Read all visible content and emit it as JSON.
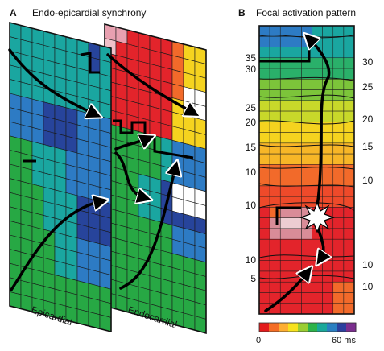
{
  "panel_a": {
    "letter": "A",
    "title": "Endo-epicardial synchrony",
    "epicardial_label": "Epicardial",
    "endocardial_label": "Endocardial"
  },
  "panel_b": {
    "letter": "B",
    "title": "Focal activation pattern",
    "left_labels": [
      "35",
      "30",
      "25",
      "20",
      "15",
      "10",
      "10",
      "10",
      "5"
    ],
    "right_labels": [
      "30",
      "25",
      "20",
      "15",
      "10",
      "10",
      "10"
    ]
  },
  "colorbar": {
    "min_label": "0",
    "max_label": "60 ms",
    "stops": [
      "#e31a1c",
      "#f46d25",
      "#fdae32",
      "#f7e21e",
      "#9acd32",
      "#2db34a",
      "#1aa89a",
      "#2a7fc1",
      "#2b3f9e",
      "#7b2d8e"
    ]
  },
  "colors": {
    "red": "#e3242b",
    "orange": "#f26a2a",
    "yellow": "#f5d31f",
    "green": "#27a844",
    "teal": "#1aa6a0",
    "blue": "#2d7bc4",
    "navy": "#27449b",
    "white": "#ffffff"
  }
}
